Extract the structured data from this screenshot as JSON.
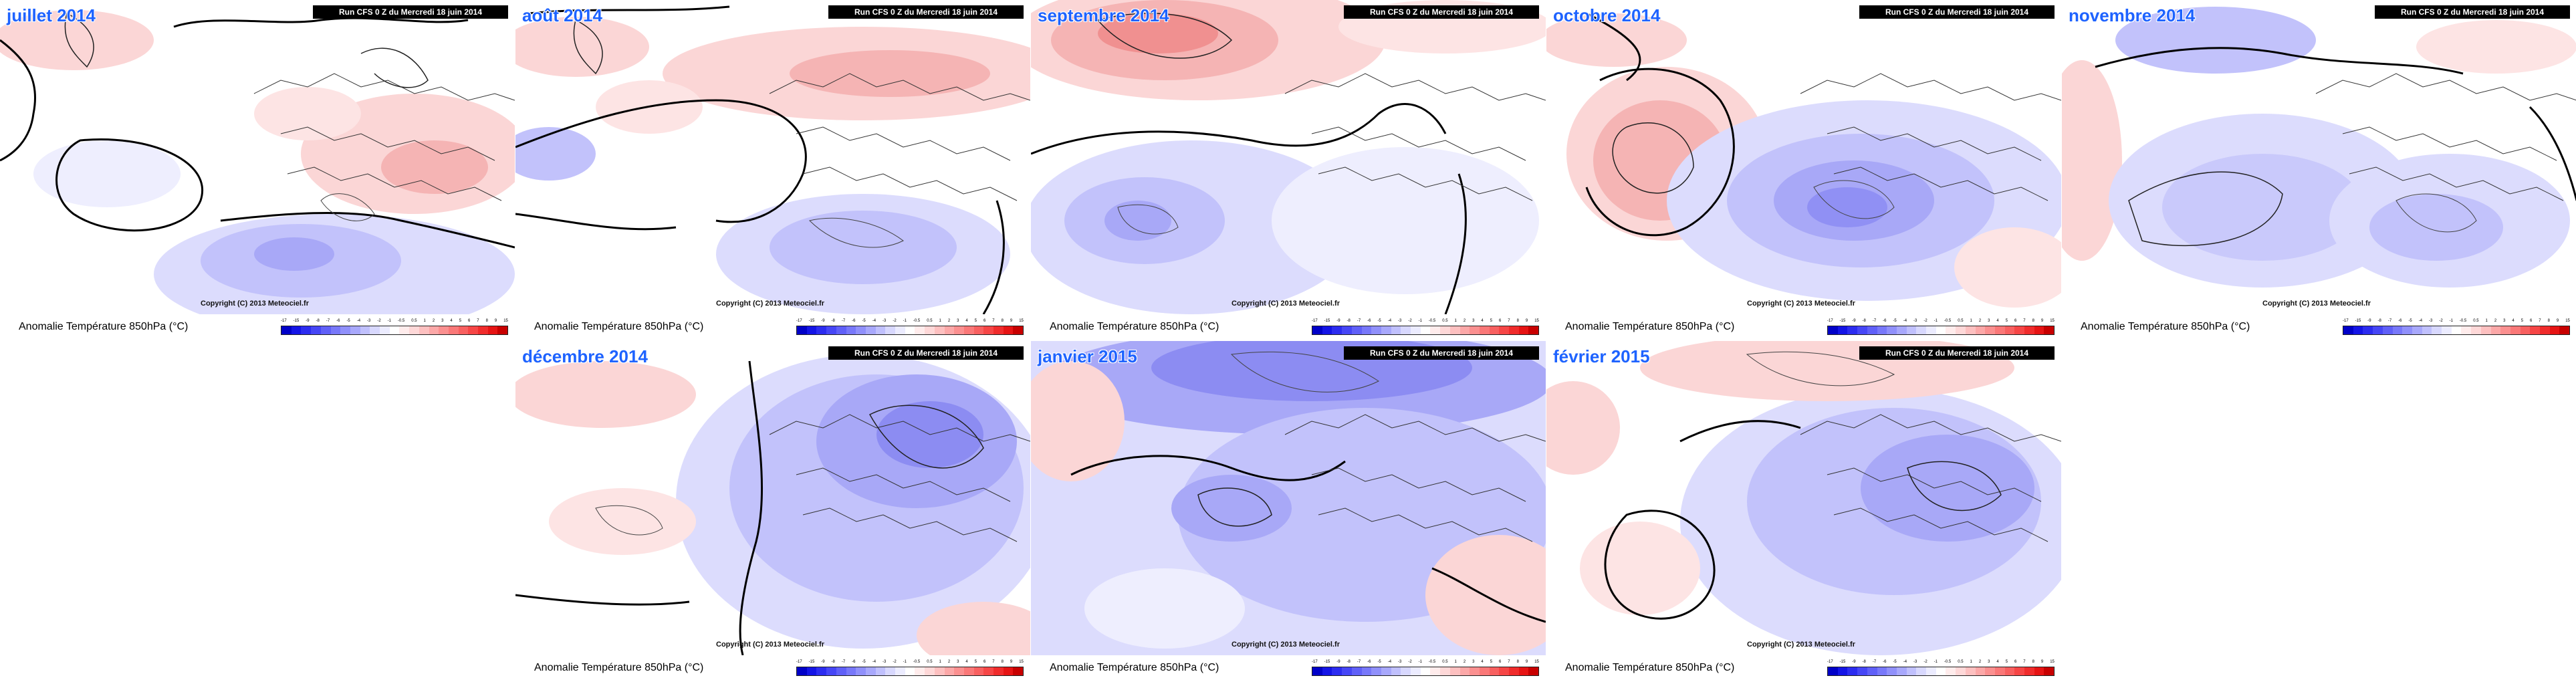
{
  "run_label": "Run CFS 0 Z du Mercredi 18 juin 2014",
  "copyright": "Copyright (C) 2013 Meteociel.fr",
  "axis_label": "Anomalie Température 850hPa (°C)",
  "colorbar": {
    "ticks": [
      "-17",
      "-15",
      "-9",
      "-8",
      "-7",
      "-6",
      "-5",
      "-4",
      "-3",
      "-2",
      "-1",
      "-0.5",
      "0.5",
      "1",
      "2",
      "3",
      "4",
      "5",
      "6",
      "7",
      "8",
      "9",
      "15"
    ],
    "colors": [
      "#0000c8",
      "#1414e6",
      "#2c2cf0",
      "#4646f6",
      "#6060f8",
      "#7878fa",
      "#9090fb",
      "#a8a8fc",
      "#c0c0fd",
      "#d8d8fe",
      "#ececff",
      "#ffffff",
      "#ffecec",
      "#fed8d8",
      "#fdc0c0",
      "#fca8a8",
      "#fb9090",
      "#fa7878",
      "#f86060",
      "#f64646",
      "#f02c2c",
      "#e61414",
      "#c80000"
    ]
  },
  "panels": [
    {
      "month": "juillet 2014"
    },
    {
      "month": "août 2014"
    },
    {
      "month": "septembre 2014"
    },
    {
      "month": "octobre 2014"
    },
    {
      "month": "novembre 2014"
    },
    {
      "month": "décembre 2014"
    },
    {
      "month": "janvier 2015"
    },
    {
      "month": "février 2015"
    }
  ]
}
